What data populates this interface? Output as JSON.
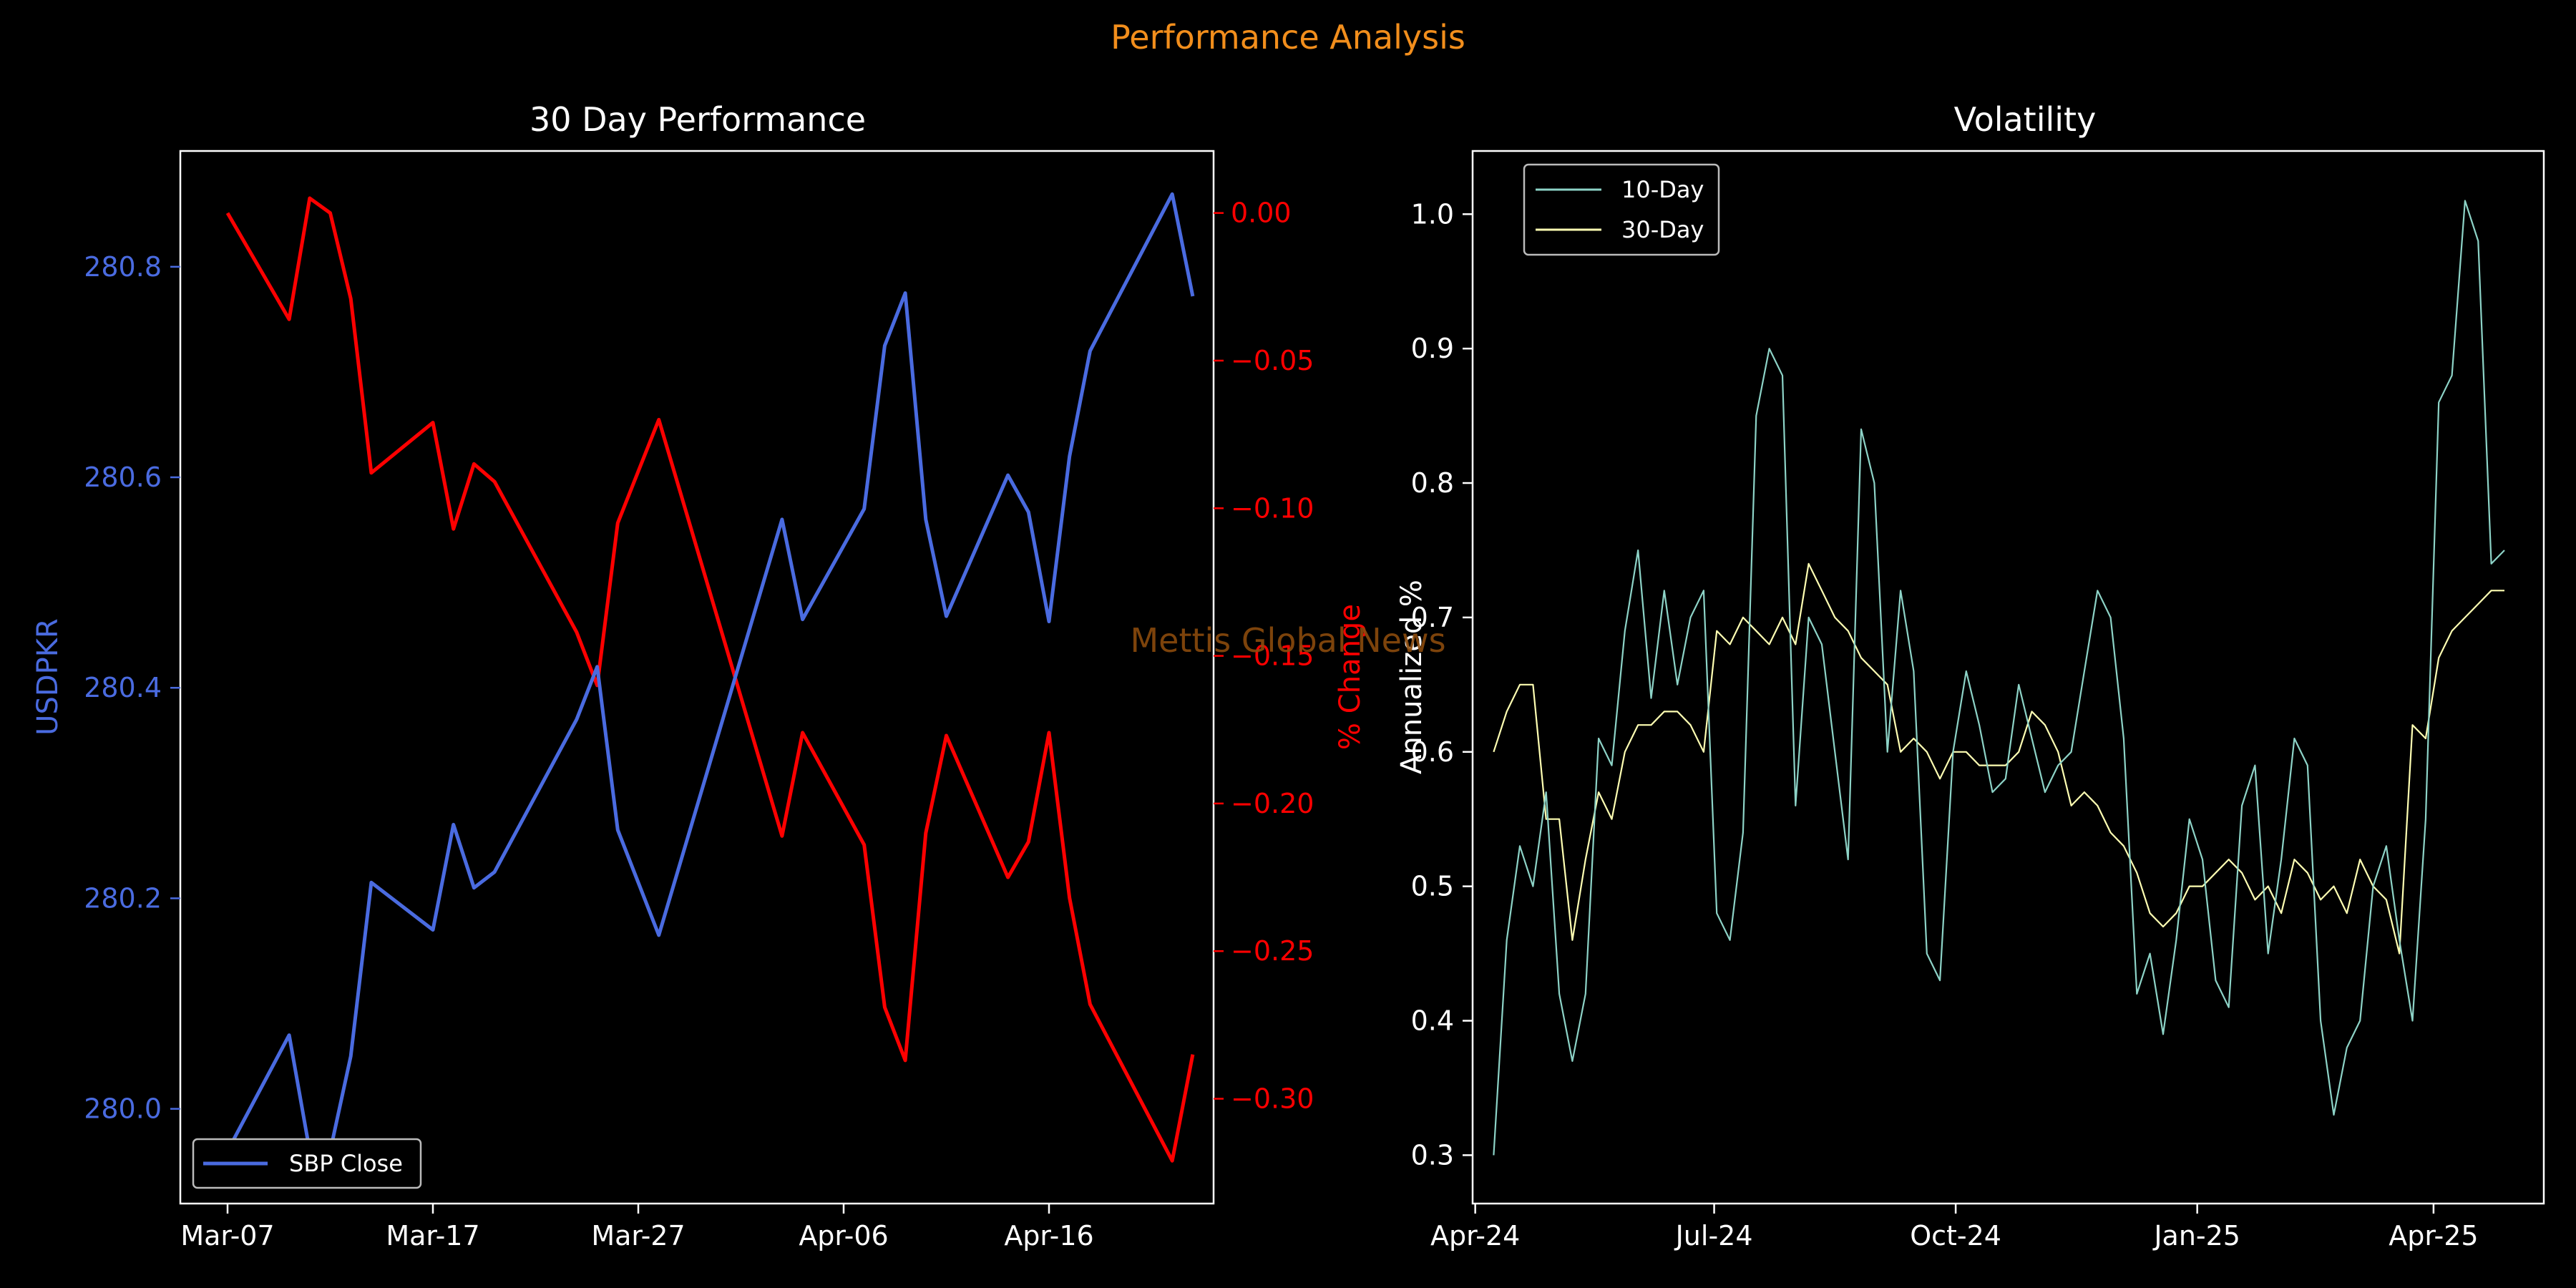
{
  "suptitle": "Performance Analysis",
  "watermark": "Mettis Global News",
  "colors": {
    "background": "#000000",
    "axes": "#ffffff",
    "suptitle": "#f28e1c",
    "price": "#4a6be0",
    "pct": "#ff0000",
    "vol10": "#8dd3c7",
    "vol30": "#ffffb3",
    "watermark": "#8b4a0c"
  },
  "chart_data": [
    {
      "type": "line",
      "title": "30 Day Performance",
      "xlabel": "",
      "ylabel": "USDPKR",
      "y2label": "% Change",
      "x_ticks": [
        "Mar-07",
        "Mar-17",
        "Mar-27",
        "Apr-06",
        "Apr-16"
      ],
      "y_ticks": [
        "280.0",
        "280.2",
        "280.4",
        "280.6",
        "280.8"
      ],
      "y2_ticks": [
        "0.00",
        "−0.05",
        "−0.10",
        "−0.15",
        "−0.20",
        "−0.25",
        "−0.30"
      ],
      "ylim": [
        279.91,
        280.91
      ],
      "y2lim": [
        -0.3355,
        0.021
      ],
      "legend": "bottom-left",
      "series": [
        {
          "name": "SBP Close",
          "axis": "left",
          "x": [
            "2025-03-07",
            "2025-03-10",
            "2025-03-11",
            "2025-03-12",
            "2025-03-13",
            "2025-03-14",
            "2025-03-17",
            "2025-03-18",
            "2025-03-19",
            "2025-03-20",
            "2025-03-24",
            "2025-03-25",
            "2025-03-26",
            "2025-03-28",
            "2025-04-03",
            "2025-04-04",
            "2025-04-07",
            "2025-04-08",
            "2025-04-09",
            "2025-04-10",
            "2025-04-11",
            "2025-04-14",
            "2025-04-15",
            "2025-04-16",
            "2025-04-17",
            "2025-04-18",
            "2025-04-22",
            "2025-04-23"
          ],
          "values": [
            279.96,
            280.07,
            279.96,
            279.96,
            280.05,
            280.215,
            280.17,
            280.27,
            280.21,
            280.225,
            280.37,
            280.42,
            280.265,
            280.165,
            280.56,
            280.465,
            280.57,
            280.725,
            280.775,
            280.56,
            280.468,
            280.602,
            280.567,
            280.463,
            280.62,
            280.72,
            280.869,
            280.772
          ]
        },
        {
          "name": "% Change",
          "axis": "right",
          "x": [
            "2025-03-07",
            "2025-03-10",
            "2025-03-11",
            "2025-03-12",
            "2025-03-13",
            "2025-03-14",
            "2025-03-17",
            "2025-03-18",
            "2025-03-19",
            "2025-03-20",
            "2025-03-24",
            "2025-03-25",
            "2025-03-26",
            "2025-03-28",
            "2025-04-03",
            "2025-04-04",
            "2025-04-07",
            "2025-04-08",
            "2025-04-09",
            "2025-04-10",
            "2025-04-11",
            "2025-04-14",
            "2025-04-15",
            "2025-04-16",
            "2025-04-17",
            "2025-04-18",
            "2025-04-22",
            "2025-04-23"
          ],
          "values": [
            0.0,
            -0.036,
            0.005,
            0.0,
            -0.029,
            -0.088,
            -0.071,
            -0.107,
            -0.085,
            -0.091,
            -0.142,
            -0.16,
            -0.105,
            -0.07,
            -0.211,
            -0.176,
            -0.214,
            -0.269,
            -0.287,
            -0.21,
            -0.177,
            -0.225,
            -0.213,
            -0.176,
            -0.232,
            -0.268,
            -0.321,
            -0.285
          ]
        }
      ]
    },
    {
      "type": "line",
      "title": "Volatility",
      "xlabel": "",
      "ylabel": "Annualized %",
      "x_ticks": [
        "Apr-24",
        "Jul-24",
        "Oct-24",
        "Jan-25",
        "Apr-25"
      ],
      "x_tick_dates": [
        "2024-04-01",
        "2024-07-01",
        "2024-10-01",
        "2025-01-01",
        "2025-04-01"
      ],
      "xlim": [
        "2024-03-31",
        "2025-05-13"
      ],
      "y_ticks": [
        "0.3",
        "0.4",
        "0.5",
        "0.6",
        "0.7",
        "0.8",
        "0.9",
        "1.0"
      ],
      "ylim": [
        0.264,
        1.047
      ],
      "legend": "top-left",
      "series": [
        {
          "name": "10-Day",
          "x": [
            "2024-04-08",
            "2024-04-13",
            "2024-04-18",
            "2024-04-23",
            "2024-04-28",
            "2024-05-03",
            "2024-05-08",
            "2024-05-13",
            "2024-05-18",
            "2024-05-23",
            "2024-05-28",
            "2024-06-02",
            "2024-06-07",
            "2024-06-12",
            "2024-06-17",
            "2024-06-22",
            "2024-06-27",
            "2024-07-02",
            "2024-07-07",
            "2024-07-12",
            "2024-07-17",
            "2024-07-22",
            "2024-07-27",
            "2024-08-01",
            "2024-08-06",
            "2024-08-11",
            "2024-08-16",
            "2024-08-21",
            "2024-08-26",
            "2024-08-31",
            "2024-09-05",
            "2024-09-10",
            "2024-09-15",
            "2024-09-20",
            "2024-09-25",
            "2024-09-30",
            "2024-10-05",
            "2024-10-10",
            "2024-10-15",
            "2024-10-20",
            "2024-10-25",
            "2024-10-30",
            "2024-11-04",
            "2024-11-09",
            "2024-11-14",
            "2024-11-19",
            "2024-11-24",
            "2024-11-29",
            "2024-12-04",
            "2024-12-09",
            "2024-12-14",
            "2024-12-19",
            "2024-12-24",
            "2024-12-29",
            "2025-01-03",
            "2025-01-08",
            "2025-01-13",
            "2025-01-18",
            "2025-01-23",
            "2025-01-28",
            "2025-02-02",
            "2025-02-07",
            "2025-02-12",
            "2025-02-17",
            "2025-02-22",
            "2025-02-27",
            "2025-03-04",
            "2025-03-09",
            "2025-03-14",
            "2025-03-19",
            "2025-03-24",
            "2025-03-29",
            "2025-04-03",
            "2025-04-08",
            "2025-04-13",
            "2025-04-18",
            "2025-04-23",
            "2025-04-28"
          ],
          "values": [
            0.3,
            0.46,
            0.53,
            0.5,
            0.57,
            0.42,
            0.37,
            0.42,
            0.61,
            0.59,
            0.69,
            0.75,
            0.64,
            0.72,
            0.65,
            0.7,
            0.72,
            0.48,
            0.46,
            0.54,
            0.85,
            0.9,
            0.88,
            0.56,
            0.7,
            0.68,
            0.6,
            0.52,
            0.84,
            0.8,
            0.6,
            0.72,
            0.66,
            0.45,
            0.43,
            0.6,
            0.66,
            0.62,
            0.57,
            0.58,
            0.65,
            0.61,
            0.57,
            0.59,
            0.6,
            0.66,
            0.72,
            0.7,
            0.61,
            0.42,
            0.45,
            0.39,
            0.46,
            0.55,
            0.52,
            0.43,
            0.41,
            0.56,
            0.59,
            0.45,
            0.52,
            0.61,
            0.59,
            0.4,
            0.33,
            0.38,
            0.4,
            0.5,
            0.53,
            0.46,
            0.4,
            0.55,
            0.86,
            0.88,
            1.01,
            0.98,
            0.74,
            0.75
          ],
          "style": "thin"
        },
        {
          "name": "30-Day",
          "x": [
            "2024-04-08",
            "2024-04-13",
            "2024-04-18",
            "2024-04-23",
            "2024-04-28",
            "2024-05-03",
            "2024-05-08",
            "2024-05-13",
            "2024-05-18",
            "2024-05-23",
            "2024-05-28",
            "2024-06-02",
            "2024-06-07",
            "2024-06-12",
            "2024-06-17",
            "2024-06-22",
            "2024-06-27",
            "2024-07-02",
            "2024-07-07",
            "2024-07-12",
            "2024-07-17",
            "2024-07-22",
            "2024-07-27",
            "2024-08-01",
            "2024-08-06",
            "2024-08-11",
            "2024-08-16",
            "2024-08-21",
            "2024-08-26",
            "2024-08-31",
            "2024-09-05",
            "2024-09-10",
            "2024-09-15",
            "2024-09-20",
            "2024-09-25",
            "2024-09-30",
            "2024-10-05",
            "2024-10-10",
            "2024-10-15",
            "2024-10-20",
            "2024-10-25",
            "2024-10-30",
            "2024-11-04",
            "2024-11-09",
            "2024-11-14",
            "2024-11-19",
            "2024-11-24",
            "2024-11-29",
            "2024-12-04",
            "2024-12-09",
            "2024-12-14",
            "2024-12-19",
            "2024-12-24",
            "2024-12-29",
            "2025-01-03",
            "2025-01-08",
            "2025-01-13",
            "2025-01-18",
            "2025-01-23",
            "2025-01-28",
            "2025-02-02",
            "2025-02-07",
            "2025-02-12",
            "2025-02-17",
            "2025-02-22",
            "2025-02-27",
            "2025-03-04",
            "2025-03-09",
            "2025-03-14",
            "2025-03-19",
            "2025-03-24",
            "2025-03-29",
            "2025-04-03",
            "2025-04-08",
            "2025-04-13",
            "2025-04-18",
            "2025-04-23",
            "2025-04-28"
          ],
          "values": [
            0.6,
            0.63,
            0.65,
            0.65,
            0.55,
            0.55,
            0.46,
            0.52,
            0.57,
            0.55,
            0.6,
            0.62,
            0.62,
            0.63,
            0.63,
            0.62,
            0.6,
            0.69,
            0.68,
            0.7,
            0.69,
            0.68,
            0.7,
            0.68,
            0.74,
            0.72,
            0.7,
            0.69,
            0.67,
            0.66,
            0.65,
            0.6,
            0.61,
            0.6,
            0.58,
            0.6,
            0.6,
            0.59,
            0.59,
            0.59,
            0.6,
            0.63,
            0.62,
            0.6,
            0.56,
            0.57,
            0.56,
            0.54,
            0.53,
            0.51,
            0.48,
            0.47,
            0.48,
            0.5,
            0.5,
            0.51,
            0.52,
            0.51,
            0.49,
            0.5,
            0.48,
            0.52,
            0.51,
            0.49,
            0.5,
            0.48,
            0.52,
            0.5,
            0.49,
            0.45,
            0.62,
            0.61,
            0.67,
            0.69,
            0.7,
            0.71,
            0.72,
            0.72
          ],
          "style": "thin"
        }
      ]
    }
  ]
}
